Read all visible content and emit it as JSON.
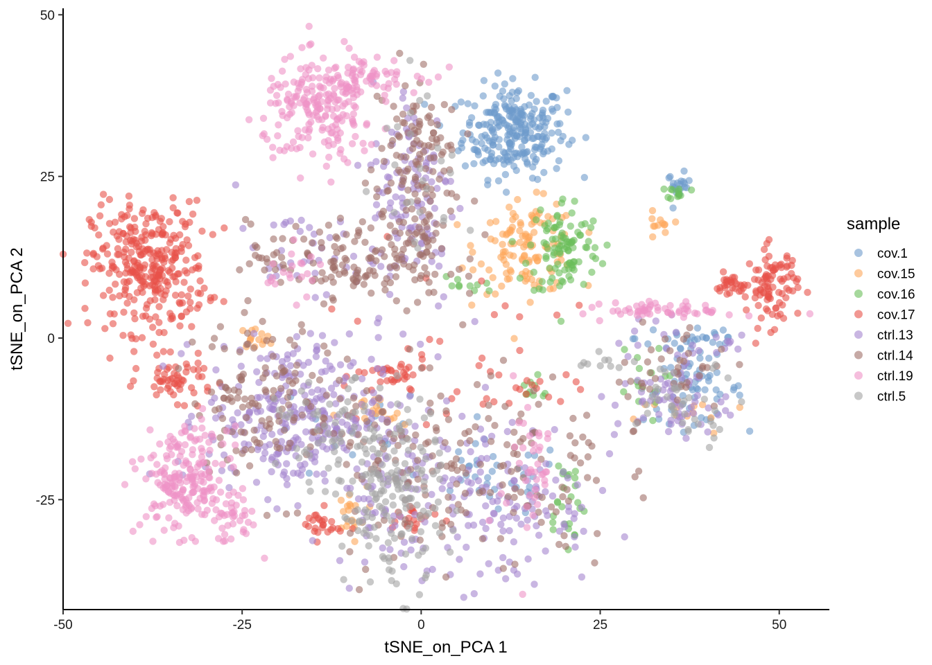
{
  "chart_data": {
    "type": "scatter",
    "xlabel": "tSNE_on_PCA 1",
    "ylabel": "tSNE_on_PCA 2",
    "xlim": [
      -50,
      57
    ],
    "ylim": [
      -42,
      51
    ],
    "xticks": [
      "-50",
      "-25",
      "0",
      "25",
      "50"
    ],
    "yticks": [
      "-25",
      "0",
      "25",
      "50"
    ],
    "legend": {
      "title": "sample",
      "position": "right"
    },
    "point_opacity": 0.6,
    "series": [
      {
        "name": "cov.1",
        "color": "#6E9BCC",
        "clusters": [
          {
            "cx": 13,
            "cy": 32,
            "sx": 3.6,
            "sy": 3.6,
            "n": 260
          },
          {
            "cx": 36,
            "cy": 23.5,
            "sx": 0.8,
            "sy": 1.0,
            "n": 20
          },
          {
            "cx": 38,
            "cy": -8,
            "sx": 3.5,
            "sy": 2.5,
            "n": 55
          },
          {
            "cx": 38,
            "cy": 0,
            "sx": 4,
            "sy": 1.5,
            "n": 30
          },
          {
            "cx": 10,
            "cy": -22,
            "sx": 5,
            "sy": 3,
            "n": 35
          },
          {
            "cx": -10,
            "cy": -15,
            "sx": 6,
            "sy": 4,
            "n": 15
          }
        ]
      },
      {
        "name": "cov.15",
        "color": "#FDA65A",
        "clusters": [
          {
            "cx": 15,
            "cy": 14,
            "sx": 3.5,
            "sy": 3.5,
            "n": 120
          },
          {
            "cx": 33,
            "cy": 17,
            "sx": 0.8,
            "sy": 1.2,
            "n": 12
          },
          {
            "cx": -23,
            "cy": 0,
            "sx": 1.2,
            "sy": 0.8,
            "n": 14
          },
          {
            "cx": -10,
            "cy": -27,
            "sx": 1.2,
            "sy": 2,
            "n": 18
          },
          {
            "cx": -7,
            "cy": -12,
            "sx": 2.5,
            "sy": 1.5,
            "n": 18
          },
          {
            "cx": 38,
            "cy": -12,
            "sx": 4,
            "sy": 1.5,
            "n": 12
          }
        ]
      },
      {
        "name": "cov.16",
        "color": "#6ABE5A",
        "clusters": [
          {
            "cx": 20,
            "cy": 14,
            "sx": 2.5,
            "sy": 4,
            "n": 100
          },
          {
            "cx": 36,
            "cy": 22.5,
            "sx": 0.8,
            "sy": 0.5,
            "n": 12
          },
          {
            "cx": 20,
            "cy": -25,
            "sx": 1.5,
            "sy": 4,
            "n": 25
          },
          {
            "cx": 15,
            "cy": -8,
            "sx": 2,
            "sy": 1,
            "n": 10
          },
          {
            "cx": 30,
            "cy": -7,
            "sx": 2,
            "sy": 3,
            "n": 15
          },
          {
            "cx": 6,
            "cy": 8,
            "sx": 2,
            "sy": 1,
            "n": 10
          }
        ]
      },
      {
        "name": "cov.17",
        "color": "#E8524A",
        "clusters": [
          {
            "cx": -38,
            "cy": 11,
            "sx": 4,
            "sy": 5,
            "n": 320
          },
          {
            "cx": 49,
            "cy": 8,
            "sx": 1.8,
            "sy": 3,
            "n": 90
          },
          {
            "cx": 43.5,
            "cy": 8,
            "sx": 1.2,
            "sy": 1,
            "n": 30
          },
          {
            "cx": -34,
            "cy": -6.5,
            "sx": 2.5,
            "sy": 1.6,
            "n": 55
          },
          {
            "cx": -4,
            "cy": -6,
            "sx": 2.5,
            "sy": 1.5,
            "n": 35
          },
          {
            "cx": -14,
            "cy": -29,
            "sx": 1.5,
            "sy": 1.2,
            "n": 25
          },
          {
            "cx": -1,
            "cy": -28,
            "sx": 2,
            "sy": 1.5,
            "n": 20
          },
          {
            "cx": 14,
            "cy": -8,
            "sx": 4,
            "sy": 1.5,
            "n": 20
          },
          {
            "cx": 0,
            "cy": 0,
            "sx": 10,
            "sy": 6,
            "n": 20
          }
        ]
      },
      {
        "name": "ctrl.13",
        "color": "#A585CF",
        "clusters": [
          {
            "cx": -18,
            "cy": -12,
            "sx": 6,
            "sy": 6,
            "n": 280
          },
          {
            "cx": -1,
            "cy": 22,
            "sx": 3,
            "sy": 9,
            "n": 120
          },
          {
            "cx": 12,
            "cy": -25,
            "sx": 6,
            "sy": 7,
            "n": 130
          },
          {
            "cx": -4,
            "cy": -22,
            "sx": 4,
            "sy": 7,
            "n": 90
          },
          {
            "cx": 35,
            "cy": -10,
            "sx": 4,
            "sy": 3,
            "n": 60
          },
          {
            "cx": -16,
            "cy": 13,
            "sx": 5,
            "sy": 3,
            "n": 40
          },
          {
            "cx": 38,
            "cy": -1,
            "sx": 5,
            "sy": 2,
            "n": 25
          }
        ]
      },
      {
        "name": "ctrl.14",
        "color": "#A07069",
        "clusters": [
          {
            "cx": -1,
            "cy": 25,
            "sx": 3,
            "sy": 9,
            "n": 150
          },
          {
            "cx": -10,
            "cy": 12,
            "sx": 7,
            "sy": 3,
            "n": 140
          },
          {
            "cx": -22,
            "cy": -9,
            "sx": 5,
            "sy": 6,
            "n": 130
          },
          {
            "cx": 13,
            "cy": -20,
            "sx": 7,
            "sy": 8,
            "n": 100
          },
          {
            "cx": -3,
            "cy": -20,
            "sx": 5,
            "sy": 8,
            "n": 80
          },
          {
            "cx": 35,
            "cy": -5,
            "sx": 4,
            "sy": 4,
            "n": 40
          }
        ]
      },
      {
        "name": "ctrl.19",
        "color": "#EE93C7",
        "clusters": [
          {
            "cx": -14,
            "cy": 35,
            "sx": 4,
            "sy": 4,
            "n": 200
          },
          {
            "cx": -8,
            "cy": 41,
            "sx": 4,
            "sy": 1.5,
            "n": 60
          },
          {
            "cx": -33,
            "cy": -22,
            "sx": 3,
            "sy": 4,
            "n": 200
          },
          {
            "cx": -27,
            "cy": -28,
            "sx": 2,
            "sy": 2,
            "n": 40
          },
          {
            "cx": 35,
            "cy": 4.3,
            "sx": 4.5,
            "sy": 0.6,
            "n": 60
          },
          {
            "cx": 15,
            "cy": -20,
            "sx": 2,
            "sy": 7,
            "n": 40
          },
          {
            "cx": -18,
            "cy": 10,
            "sx": 2,
            "sy": 2,
            "n": 20
          }
        ]
      },
      {
        "name": "ctrl.5",
        "color": "#A3A3A3",
        "clusters": [
          {
            "cx": -4,
            "cy": -25,
            "sx": 3.5,
            "sy": 7,
            "n": 160
          },
          {
            "cx": -12,
            "cy": -15,
            "sx": 4,
            "sy": 4,
            "n": 60
          },
          {
            "cx": 37,
            "cy": -10,
            "sx": 4,
            "sy": 3,
            "n": 40
          },
          {
            "cx": 0,
            "cy": 28,
            "sx": 3,
            "sy": 8,
            "n": 25
          },
          {
            "cx": 25,
            "cy": -4,
            "sx": 2,
            "sy": 1,
            "n": 10
          }
        ]
      }
    ]
  }
}
